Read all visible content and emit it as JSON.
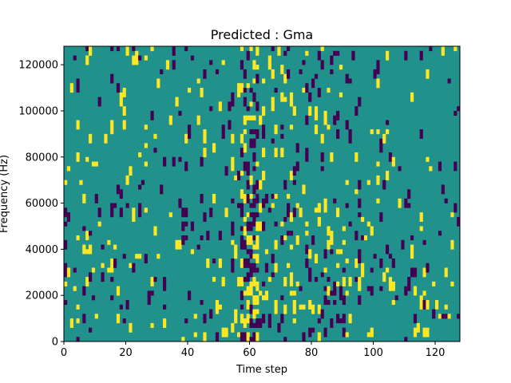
{
  "chart_data": {
    "type": "heatmap",
    "title": "Predicted : Gma",
    "xlabel": "Time step",
    "ylabel": "Frequency (Hz)",
    "xlim": [
      0,
      128
    ],
    "ylim": [
      0,
      128000
    ],
    "xticks": [
      0,
      20,
      40,
      60,
      80,
      100,
      120
    ],
    "yticks": [
      0,
      20000,
      40000,
      60000,
      80000,
      100000,
      120000
    ],
    "n_time_steps": 128,
    "n_freq_bins": 64,
    "value_levels": [
      -1,
      0,
      1
    ],
    "colors": {
      "low": "#440154",
      "mid": "#21918c",
      "high": "#fde725"
    },
    "background_value": 0,
    "description": "Sparse binary spectrogram-like map: mostly mid value with scattered low (purple) and high (yellow) cells; dense vertical band of high values around time step 58-62."
  }
}
